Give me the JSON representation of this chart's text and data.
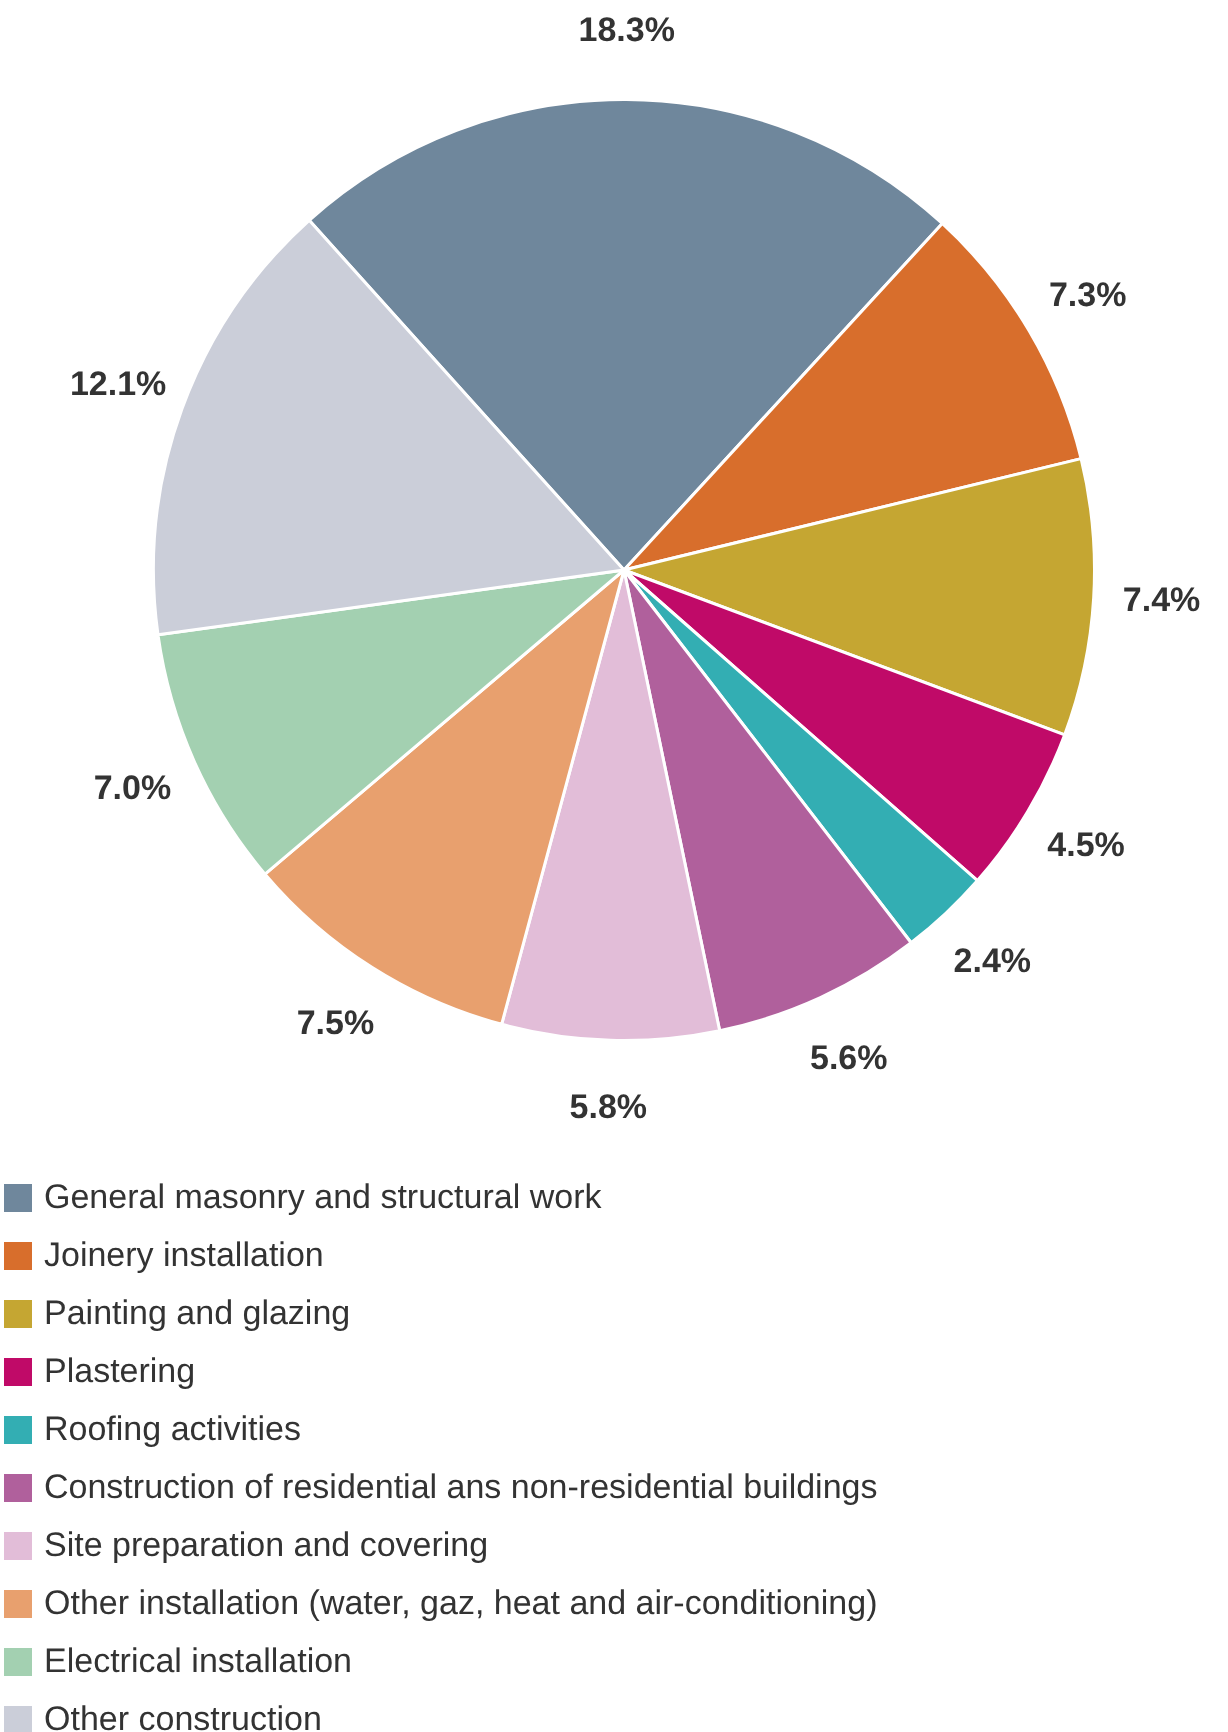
{
  "chart_data": {
    "type": "pie",
    "categories": [
      "General masonry and structural work",
      "Joinery installation",
      "Painting and glazing",
      "Plastering",
      "Roofing activities",
      "Construction of residential ans non-residential buildings",
      "Site preparation and covering",
      "Other installation (water, gaz, heat and air-conditioning)",
      "Electrical installation",
      "Other construction"
    ],
    "values": [
      18.3,
      7.3,
      7.4,
      4.5,
      2.4,
      5.6,
      5.8,
      7.5,
      7.0,
      12.1
    ],
    "colors": [
      "#6f879c",
      "#d86e2c",
      "#c5a632",
      "#c00a68",
      "#33aeb3",
      "#b0609c",
      "#e2bdd8",
      "#e8a06e",
      "#a3d0b1",
      "#cbced9"
    ],
    "value_labels": [
      "18.3%",
      "7.3%",
      "7.4%",
      "4.5%",
      "2.4%",
      "5.6%",
      "5.8%",
      "7.5%",
      "7.0%",
      "12.1%"
    ],
    "legend": "bottom"
  }
}
